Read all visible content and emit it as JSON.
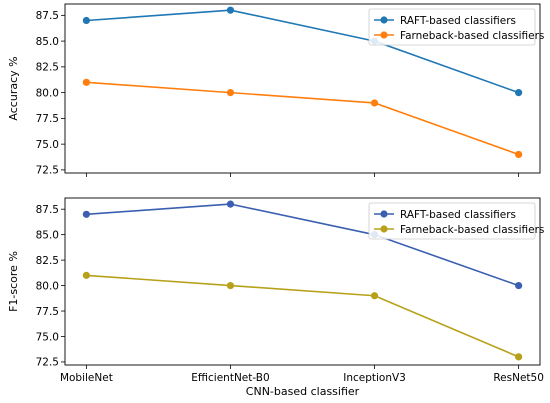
{
  "colors": {
    "raft_top": "#1f77b4",
    "farneback_top": "#ff7f0e",
    "raft_bottom": "#3b5fb0",
    "farneback_bottom": "#b8a11a"
  },
  "chart_data": [
    {
      "type": "line",
      "categories": [
        "MobileNet",
        "EfficientNet-B0",
        "InceptionV3",
        "ResNet50"
      ],
      "ylabel": "Accuracy %",
      "xlabel": "",
      "ylim": [
        72.2,
        88.6
      ],
      "yticks": [
        72.5,
        75.0,
        77.5,
        80.0,
        82.5,
        85.0,
        87.5
      ],
      "ytick_labels": [
        "72.5",
        "75.0",
        "77.5",
        "80.0",
        "82.5",
        "85.0",
        "87.5"
      ],
      "show_xtick_labels": false,
      "legend": "top-right",
      "grid": false,
      "series": [
        {
          "name": "RAFT-based classifiers",
          "values": [
            87.0,
            88.0,
            85.0,
            80.0
          ],
          "color": "#1f77b4"
        },
        {
          "name": "Farneback-based classifiers",
          "values": [
            81.0,
            80.0,
            79.0,
            74.0
          ],
          "color": "#ff7f0e"
        }
      ]
    },
    {
      "type": "line",
      "categories": [
        "MobileNet",
        "EfficientNet-B0",
        "InceptionV3",
        "ResNet50"
      ],
      "ylabel": "F1-score %",
      "xlabel": "CNN-based classifier",
      "ylim": [
        72.2,
        88.6
      ],
      "yticks": [
        72.5,
        75.0,
        77.5,
        80.0,
        82.5,
        85.0,
        87.5
      ],
      "ytick_labels": [
        "72.5",
        "75.0",
        "77.5",
        "80.0",
        "82.5",
        "85.0",
        "87.5"
      ],
      "show_xtick_labels": true,
      "legend": "top-right",
      "grid": false,
      "series": [
        {
          "name": "RAFT-based classifiers",
          "values": [
            87.0,
            88.0,
            85.0,
            80.0
          ],
          "color": "#3b5fb0"
        },
        {
          "name": "Farneback-based classifiers",
          "values": [
            81.0,
            80.0,
            79.0,
            73.0
          ],
          "color": "#b8a11a"
        }
      ]
    }
  ]
}
